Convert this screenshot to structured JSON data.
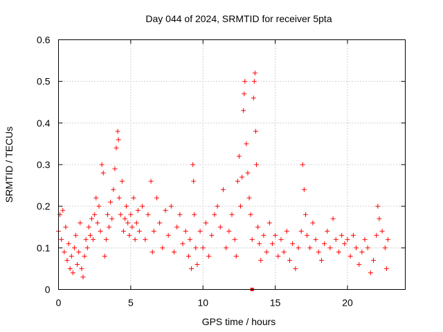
{
  "chart_data": {
    "type": "scatter",
    "title": "Day 044 of 2024, SRMTID for receiver 5pta",
    "xlabel": "GPS time / hours",
    "ylabel": "SRMTID / TECUs",
    "xlim": [
      0,
      24
    ],
    "ylim": [
      0,
      0.6
    ],
    "xticks": [
      0,
      5,
      10,
      15,
      20
    ],
    "yticks": [
      0,
      0.1,
      0.2,
      0.3,
      0.4,
      0.5,
      0.6
    ],
    "xtick_labels": [
      "0",
      "5",
      "10",
      "15",
      "20"
    ],
    "ytick_labels": [
      "0",
      "0.1",
      "0.2",
      "0.3",
      "0.4",
      "0.5",
      "0.6"
    ],
    "grid": true,
    "marker": "+",
    "color": "#ff0000",
    "series": [
      {
        "name": "SRMTID",
        "points": [
          [
            0.0,
            0.14
          ],
          [
            0.1,
            0.18
          ],
          [
            0.2,
            0.12
          ],
          [
            0.3,
            0.19
          ],
          [
            0.4,
            0.09
          ],
          [
            0.5,
            0.15
          ],
          [
            0.6,
            0.07
          ],
          [
            0.7,
            0.11
          ],
          [
            0.8,
            0.05
          ],
          [
            0.9,
            0.08
          ],
          [
            1.0,
            0.04
          ],
          [
            1.1,
            0.1
          ],
          [
            1.2,
            0.13
          ],
          [
            1.3,
            0.06
          ],
          [
            1.4,
            0.09
          ],
          [
            1.5,
            0.16
          ],
          [
            1.6,
            0.05
          ],
          [
            1.7,
            0.03
          ],
          [
            1.8,
            0.08
          ],
          [
            1.9,
            0.12
          ],
          [
            2.0,
            0.1
          ],
          [
            2.1,
            0.15
          ],
          [
            2.2,
            0.13
          ],
          [
            2.3,
            0.17
          ],
          [
            2.4,
            0.12
          ],
          [
            2.5,
            0.18
          ],
          [
            2.6,
            0.22
          ],
          [
            2.7,
            0.16
          ],
          [
            2.8,
            0.2
          ],
          [
            2.9,
            0.14
          ],
          [
            3.0,
            0.3
          ],
          [
            3.1,
            0.28
          ],
          [
            3.2,
            0.08
          ],
          [
            3.3,
            0.12
          ],
          [
            3.4,
            0.18
          ],
          [
            3.5,
            0.15
          ],
          [
            3.6,
            0.21
          ],
          [
            3.7,
            0.17
          ],
          [
            3.8,
            0.24
          ],
          [
            3.9,
            0.29
          ],
          [
            4.0,
            0.34
          ],
          [
            4.1,
            0.38
          ],
          [
            4.15,
            0.36
          ],
          [
            4.2,
            0.22
          ],
          [
            4.3,
            0.18
          ],
          [
            4.4,
            0.26
          ],
          [
            4.5,
            0.14
          ],
          [
            4.6,
            0.17
          ],
          [
            4.7,
            0.2
          ],
          [
            4.8,
            0.16
          ],
          [
            4.9,
            0.13
          ],
          [
            5.0,
            0.18
          ],
          [
            5.1,
            0.15
          ],
          [
            5.2,
            0.22
          ],
          [
            5.3,
            0.12
          ],
          [
            5.4,
            0.16
          ],
          [
            5.5,
            0.19
          ],
          [
            5.6,
            0.14
          ],
          [
            5.8,
            0.2
          ],
          [
            6.0,
            0.12
          ],
          [
            6.2,
            0.18
          ],
          [
            6.4,
            0.26
          ],
          [
            6.5,
            0.09
          ],
          [
            6.6,
            0.14
          ],
          [
            6.8,
            0.22
          ],
          [
            7.0,
            0.16
          ],
          [
            7.2,
            0.1
          ],
          [
            7.4,
            0.19
          ],
          [
            7.6,
            0.13
          ],
          [
            7.8,
            0.2
          ],
          [
            8.0,
            0.09
          ],
          [
            8.2,
            0.15
          ],
          [
            8.4,
            0.18
          ],
          [
            8.6,
            0.11
          ],
          [
            8.8,
            0.14
          ],
          [
            9.0,
            0.08
          ],
          [
            9.1,
            0.12
          ],
          [
            9.2,
            0.05
          ],
          [
            9.3,
            0.3
          ],
          [
            9.35,
            0.26
          ],
          [
            9.4,
            0.18
          ],
          [
            9.5,
            0.1
          ],
          [
            9.6,
            0.06
          ],
          [
            9.8,
            0.14
          ],
          [
            10.0,
            0.1
          ],
          [
            10.2,
            0.16
          ],
          [
            10.4,
            0.08
          ],
          [
            10.6,
            0.13
          ],
          [
            10.8,
            0.18
          ],
          [
            11.0,
            0.2
          ],
          [
            11.2,
            0.15
          ],
          [
            11.4,
            0.24
          ],
          [
            11.6,
            0.1
          ],
          [
            11.8,
            0.14
          ],
          [
            12.0,
            0.18
          ],
          [
            12.2,
            0.12
          ],
          [
            12.3,
            0.08
          ],
          [
            12.4,
            0.26
          ],
          [
            12.5,
            0.32
          ],
          [
            12.6,
            0.2
          ],
          [
            12.7,
            0.27
          ],
          [
            12.8,
            0.43
          ],
          [
            12.85,
            0.47
          ],
          [
            12.9,
            0.5
          ],
          [
            13.0,
            0.35
          ],
          [
            13.1,
            0.28
          ],
          [
            13.2,
            0.22
          ],
          [
            13.3,
            0.18
          ],
          [
            13.4,
            0.12
          ],
          [
            13.5,
            0.46
          ],
          [
            13.55,
            0.5
          ],
          [
            13.6,
            0.52
          ],
          [
            13.65,
            0.38
          ],
          [
            13.7,
            0.3
          ],
          [
            13.8,
            0.15
          ],
          [
            13.9,
            0.11
          ],
          [
            14.0,
            0.07
          ],
          [
            14.2,
            0.13
          ],
          [
            14.4,
            0.09
          ],
          [
            14.6,
            0.16
          ],
          [
            14.8,
            0.11
          ],
          [
            15.0,
            0.13
          ],
          [
            15.2,
            0.08
          ],
          [
            15.4,
            0.12
          ],
          [
            15.6,
            0.09
          ],
          [
            15.8,
            0.14
          ],
          [
            16.0,
            0.07
          ],
          [
            16.2,
            0.11
          ],
          [
            16.4,
            0.05
          ],
          [
            16.6,
            0.1
          ],
          [
            16.8,
            0.14
          ],
          [
            16.9,
            0.3
          ],
          [
            17.0,
            0.24
          ],
          [
            17.1,
            0.18
          ],
          [
            17.2,
            0.13
          ],
          [
            17.4,
            0.1
          ],
          [
            17.6,
            0.16
          ],
          [
            17.8,
            0.12
          ],
          [
            18.0,
            0.09
          ],
          [
            18.2,
            0.07
          ],
          [
            18.4,
            0.11
          ],
          [
            18.6,
            0.14
          ],
          [
            18.8,
            0.1
          ],
          [
            19.0,
            0.17
          ],
          [
            19.2,
            0.12
          ],
          [
            19.4,
            0.09
          ],
          [
            19.6,
            0.13
          ],
          [
            19.8,
            0.11
          ],
          [
            20.0,
            0.12
          ],
          [
            20.2,
            0.08
          ],
          [
            20.4,
            0.13
          ],
          [
            20.6,
            0.1
          ],
          [
            20.8,
            0.06
          ],
          [
            21.0,
            0.09
          ],
          [
            21.2,
            0.12
          ],
          [
            21.4,
            0.1
          ],
          [
            21.6,
            0.04
          ],
          [
            21.8,
            0.07
          ],
          [
            22.0,
            0.13
          ],
          [
            22.1,
            0.2
          ],
          [
            22.2,
            0.17
          ],
          [
            22.4,
            0.14
          ],
          [
            22.6,
            0.1
          ],
          [
            22.7,
            0.05
          ],
          [
            22.8,
            0.12
          ]
        ]
      }
    ],
    "special_marker": {
      "x": 13.4,
      "y": 0.0
    }
  }
}
